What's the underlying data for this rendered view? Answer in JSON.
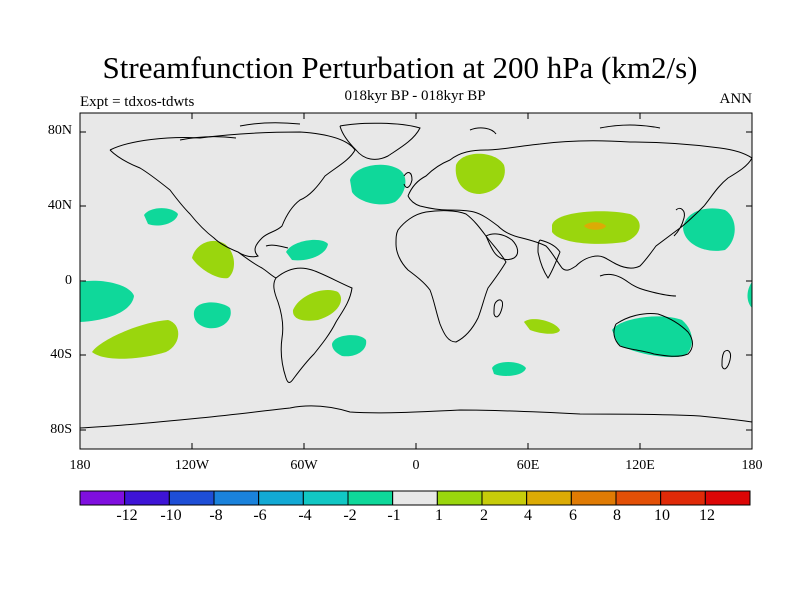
{
  "title": "Streamfunction Perturbation at 200 hPa (km2/s)",
  "subtitle": "018kyr BP - 018kyr BP",
  "left_label": "Expt = tdxos-tdwts",
  "right_label": "ANN",
  "lat_ticks": [
    "80N",
    "40N",
    "0",
    "40S",
    "80S"
  ],
  "lon_ticks": [
    "180",
    "120W",
    "60W",
    "0",
    "60E",
    "120E",
    "180"
  ],
  "colorbar": {
    "labels": [
      "-12",
      "-10",
      "-8",
      "-6",
      "-4",
      "-2",
      "-1",
      "1",
      "2",
      "4",
      "6",
      "8",
      "10",
      "12"
    ],
    "colors": [
      "#7f0fdf",
      "#3e14d6",
      "#1e4ed6",
      "#1a82db",
      "#12a9d4",
      "#11c7c4",
      "#0fd89a",
      "#e8e8e8",
      "#9ad60d",
      "#c7cc0a",
      "#dcab05",
      "#e07b04",
      "#e35006",
      "#e02a08",
      "#dc0606"
    ]
  },
  "map": {
    "background": "#e8e8e8",
    "negative_color": "#0fd89a",
    "positive_color": "#9ad60d",
    "strong_positive_color": "#dcab05"
  }
}
